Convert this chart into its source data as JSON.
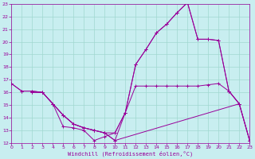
{
  "xlabel": "Windchill (Refroidissement éolien,°C)",
  "bg_color": "#c8eef0",
  "grid_color": "#a0d8d0",
  "line_color": "#990099",
  "xlim": [
    0,
    23
  ],
  "ylim": [
    12,
    23
  ],
  "xticks": [
    0,
    1,
    2,
    3,
    4,
    5,
    6,
    7,
    8,
    9,
    10,
    11,
    12,
    13,
    14,
    15,
    16,
    17,
    18,
    19,
    20,
    21,
    22,
    23
  ],
  "yticks": [
    12,
    13,
    14,
    15,
    16,
    17,
    18,
    19,
    20,
    21,
    22,
    23
  ],
  "curves": [
    [
      [
        0,
        16.7
      ],
      [
        1,
        16.1
      ],
      [
        2,
        16.1
      ],
      [
        3,
        16.0
      ],
      [
        4,
        15.1
      ],
      [
        5,
        14.2
      ],
      [
        6,
        13.5
      ],
      [
        7,
        13.2
      ],
      [
        8,
        13.0
      ],
      [
        9,
        12.8
      ],
      [
        10,
        12.2
      ],
      [
        22,
        15.1
      ]
    ],
    [
      [
        0,
        16.7
      ],
      [
        1,
        16.1
      ],
      [
        2,
        16.1
      ],
      [
        3,
        16.0
      ],
      [
        4,
        15.1
      ],
      [
        5,
        14.2
      ],
      [
        6,
        13.5
      ],
      [
        7,
        13.2
      ],
      [
        8,
        13.0
      ],
      [
        9,
        12.8
      ],
      [
        10,
        12.8
      ],
      [
        11,
        14.4
      ],
      [
        12,
        18.2
      ],
      [
        13,
        19.4
      ],
      [
        14,
        20.7
      ],
      [
        15,
        21.4
      ],
      [
        16,
        22.3
      ],
      [
        17,
        23.1
      ],
      [
        18,
        20.2
      ],
      [
        19,
        20.2
      ],
      [
        20,
        20.1
      ],
      [
        21,
        16.1
      ],
      [
        22,
        15.1
      ],
      [
        23,
        12.2
      ]
    ],
    [
      [
        2,
        16.0
      ],
      [
        3,
        16.0
      ],
      [
        4,
        15.1
      ],
      [
        5,
        13.3
      ],
      [
        6,
        13.2
      ],
      [
        7,
        13.0
      ],
      [
        8,
        12.2
      ],
      [
        9,
        12.5
      ],
      [
        10,
        12.8
      ],
      [
        11,
        14.4
      ],
      [
        12,
        18.2
      ],
      [
        13,
        19.4
      ],
      [
        14,
        20.7
      ],
      [
        15,
        21.4
      ],
      [
        16,
        22.3
      ],
      [
        17,
        23.1
      ],
      [
        18,
        20.2
      ],
      [
        19,
        20.2
      ],
      [
        20,
        20.1
      ],
      [
        21,
        16.1
      ],
      [
        22,
        15.1
      ],
      [
        23,
        12.2
      ]
    ],
    [
      [
        2,
        16.0
      ],
      [
        3,
        16.0
      ],
      [
        4,
        15.1
      ],
      [
        5,
        14.2
      ],
      [
        6,
        13.5
      ],
      [
        7,
        13.2
      ],
      [
        8,
        13.0
      ],
      [
        9,
        12.8
      ],
      [
        10,
        12.2
      ],
      [
        11,
        14.4
      ],
      [
        12,
        16.5
      ],
      [
        13,
        16.5
      ],
      [
        14,
        16.5
      ],
      [
        15,
        16.5
      ],
      [
        16,
        16.5
      ],
      [
        17,
        16.5
      ],
      [
        18,
        16.5
      ],
      [
        19,
        16.6
      ],
      [
        20,
        16.7
      ],
      [
        21,
        16.1
      ],
      [
        22,
        15.1
      ],
      [
        23,
        12.2
      ]
    ]
  ]
}
